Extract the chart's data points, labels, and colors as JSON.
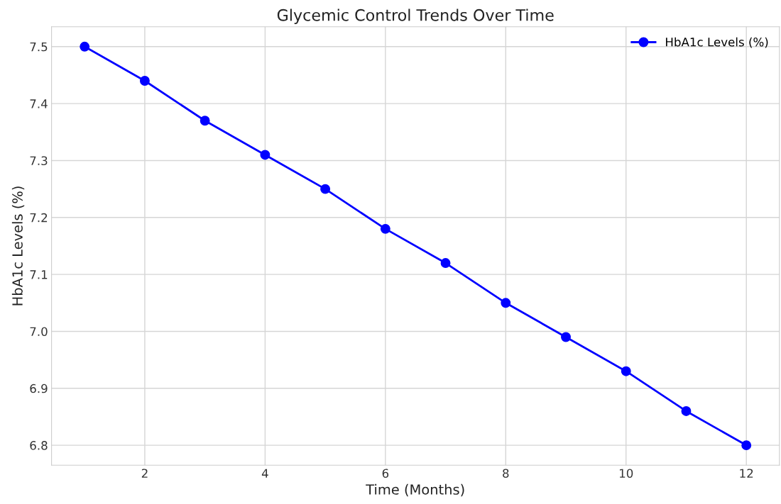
{
  "chart_data": {
    "type": "line",
    "title": "Glycemic Control Trends Over Time",
    "xlabel": "Time (Months)",
    "ylabel": "HbA1c Levels (%)",
    "x": [
      1,
      2,
      3,
      4,
      5,
      6,
      7,
      8,
      9,
      10,
      11,
      12
    ],
    "series": [
      {
        "name": "HbA1c Levels (%)",
        "color": "#0000ff",
        "values": [
          7.5,
          7.44,
          7.37,
          7.31,
          7.25,
          7.18,
          7.12,
          7.05,
          6.99,
          6.93,
          6.86,
          6.8
        ]
      }
    ],
    "xlim": [
      0.45,
      12.55
    ],
    "xticks": [
      2,
      4,
      6,
      8,
      10,
      12
    ],
    "ylim": [
      6.765,
      7.535
    ],
    "yticks": [
      {
        "value": 6.8,
        "label": "6.8"
      },
      {
        "value": 6.9,
        "label": "6.9"
      },
      {
        "value": 7.0,
        "label": "7.0"
      },
      {
        "value": 7.1,
        "label": "7.1"
      },
      {
        "value": 7.2,
        "label": "7.2"
      },
      {
        "value": 7.3,
        "label": "7.3"
      },
      {
        "value": 7.4,
        "label": "7.4"
      },
      {
        "value": 7.5,
        "label": "7.5"
      }
    ],
    "grid": true,
    "legend": "top right",
    "marker": "circle",
    "line_style": "solid"
  }
}
